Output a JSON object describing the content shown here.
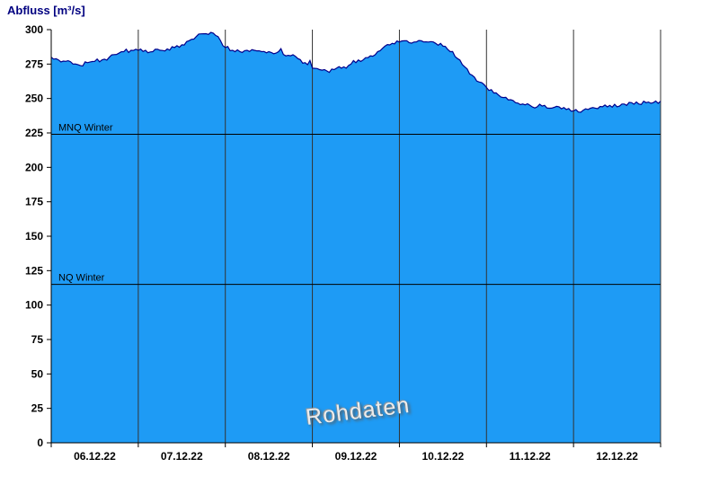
{
  "title": "Abfluss [m³/s]",
  "chart_data": {
    "type": "area",
    "title": "Abfluss [m³/s]",
    "ylabel": "Abfluss [m³/s]",
    "xlabel": "",
    "ylim": [
      0,
      300
    ],
    "y_ticks": [
      0,
      25,
      50,
      75,
      100,
      125,
      150,
      175,
      200,
      225,
      250,
      275,
      300
    ],
    "x_tick_labels": [
      "06.12.22",
      "07.12.22",
      "08.12.22",
      "09.12.22",
      "10.12.22",
      "11.12.22",
      "12.12.22"
    ],
    "x_days": 7,
    "sample_interval_hours": 2,
    "grid": "vertical-day-lines",
    "legend_position": "none",
    "series": [
      {
        "name": "Abfluss Rohdaten",
        "values": [
          280,
          278,
          277,
          275,
          274,
          276,
          277,
          278,
          280,
          282,
          284,
          285,
          285,
          285,
          284,
          285,
          286,
          287,
          289,
          292,
          295,
          297,
          298,
          295,
          287,
          285,
          284,
          285,
          285,
          284,
          284,
          283,
          282,
          281,
          279,
          276,
          272,
          271,
          270,
          271,
          272,
          274,
          276,
          278,
          281,
          284,
          288,
          290,
          291,
          292,
          291,
          292,
          291,
          290,
          288,
          284,
          279,
          273,
          267,
          262,
          258,
          254,
          251,
          249,
          247,
          246,
          245,
          244,
          245,
          243,
          244,
          242,
          241,
          240,
          242,
          243,
          244,
          245,
          244,
          246,
          247,
          246,
          247,
          247,
          248
        ]
      }
    ],
    "reference_lines": [
      {
        "label": "MNQ Winter",
        "value": 224
      },
      {
        "label": "NQ Winter",
        "value": 115
      }
    ],
    "watermark": "Rohdaten",
    "colors": {
      "fill": "#1E9BF5",
      "line": "#00008B",
      "grid": "#333333",
      "axis": "#000000",
      "title": "#000080"
    }
  }
}
